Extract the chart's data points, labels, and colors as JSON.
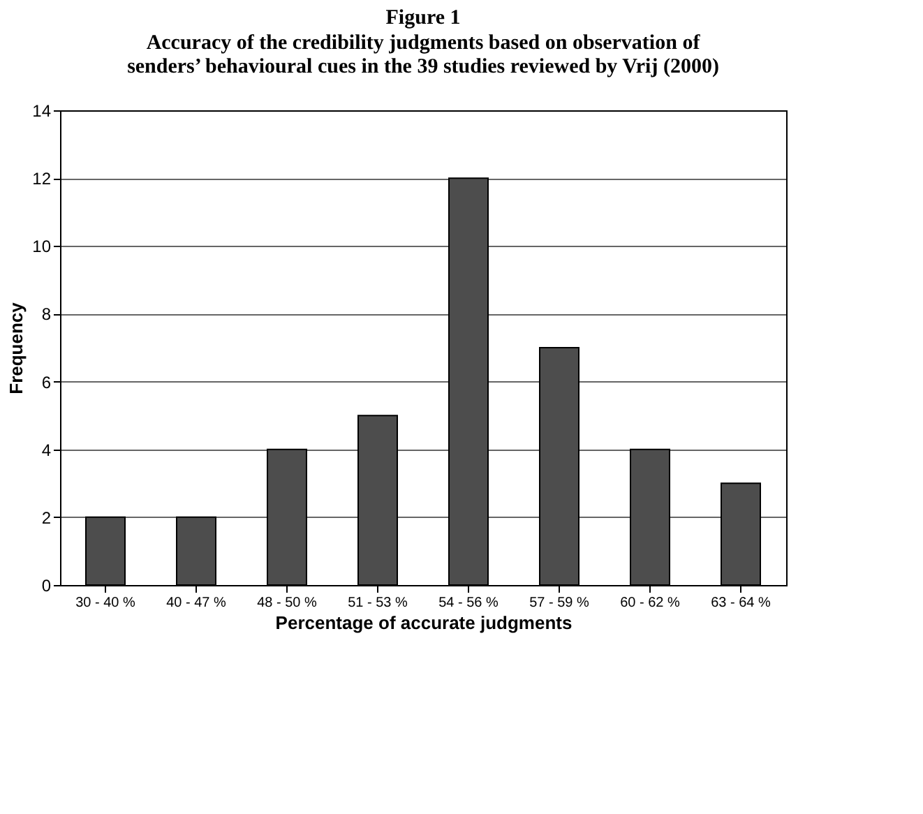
{
  "chart_data": {
    "type": "bar",
    "title": "Figure 1",
    "subtitle": "Accuracy of the credibility judgments based on observation of\nsenders’ behavioural cues in the 39 studies reviewed by Vrij (2000)",
    "xlabel": "Percentage of accurate judgments",
    "ylabel": "Frequency",
    "categories": [
      "30 - 40 %",
      "40 - 47 %",
      "48 - 50 %",
      "51 - 53 %",
      "54 - 56 %",
      "57 - 59 %",
      "60 - 62 %",
      "63 - 64 %"
    ],
    "values": [
      2,
      2,
      4,
      5,
      12,
      7,
      4,
      3
    ],
    "color": "#4d4d4d",
    "ylim": [
      0,
      14
    ],
    "yticks": [
      0,
      2,
      4,
      6,
      8,
      10,
      12,
      14
    ],
    "grid": "y"
  }
}
